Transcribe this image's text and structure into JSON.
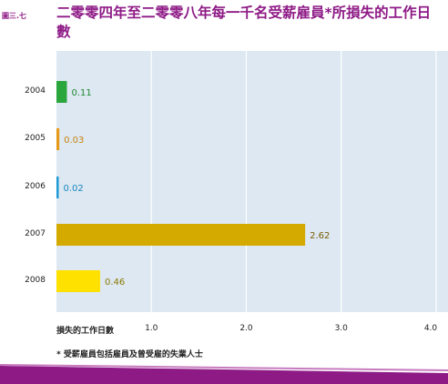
{
  "figure_label": "圖三.七",
  "title": "二零零四年至二零零八年每一千名受薪雇員*所損失的工作日數",
  "footnote": "* 受薪雇員包括雇員及曾受雇的失業人士",
  "colors": {
    "title": "#8e1a86",
    "plot_bg": "#dde8f2",
    "band": "#8e1a86"
  },
  "chart_data": {
    "type": "bar",
    "orientation": "horizontal",
    "categories": [
      "2004",
      "2005",
      "2006",
      "2007",
      "2008"
    ],
    "values": [
      0.11,
      0.03,
      0.02,
      2.62,
      0.46
    ],
    "value_labels": [
      "0.11",
      "0.03",
      "0.02",
      "2.62",
      "0.46"
    ],
    "bar_colors": [
      "#2aa63d",
      "#e59a1a",
      "#1e9ad6",
      "#d4a900",
      "#ffe100"
    ],
    "label_colors": [
      "#1f8a30",
      "#c8820e",
      "#1a86c0",
      "#7a5c00",
      "#8a7a00"
    ],
    "xlabel": "損失的工作日數",
    "xlim": [
      0,
      4.0
    ],
    "xticks": [
      "1.0",
      "2.0",
      "3.0",
      "4.0"
    ],
    "grid": true
  }
}
